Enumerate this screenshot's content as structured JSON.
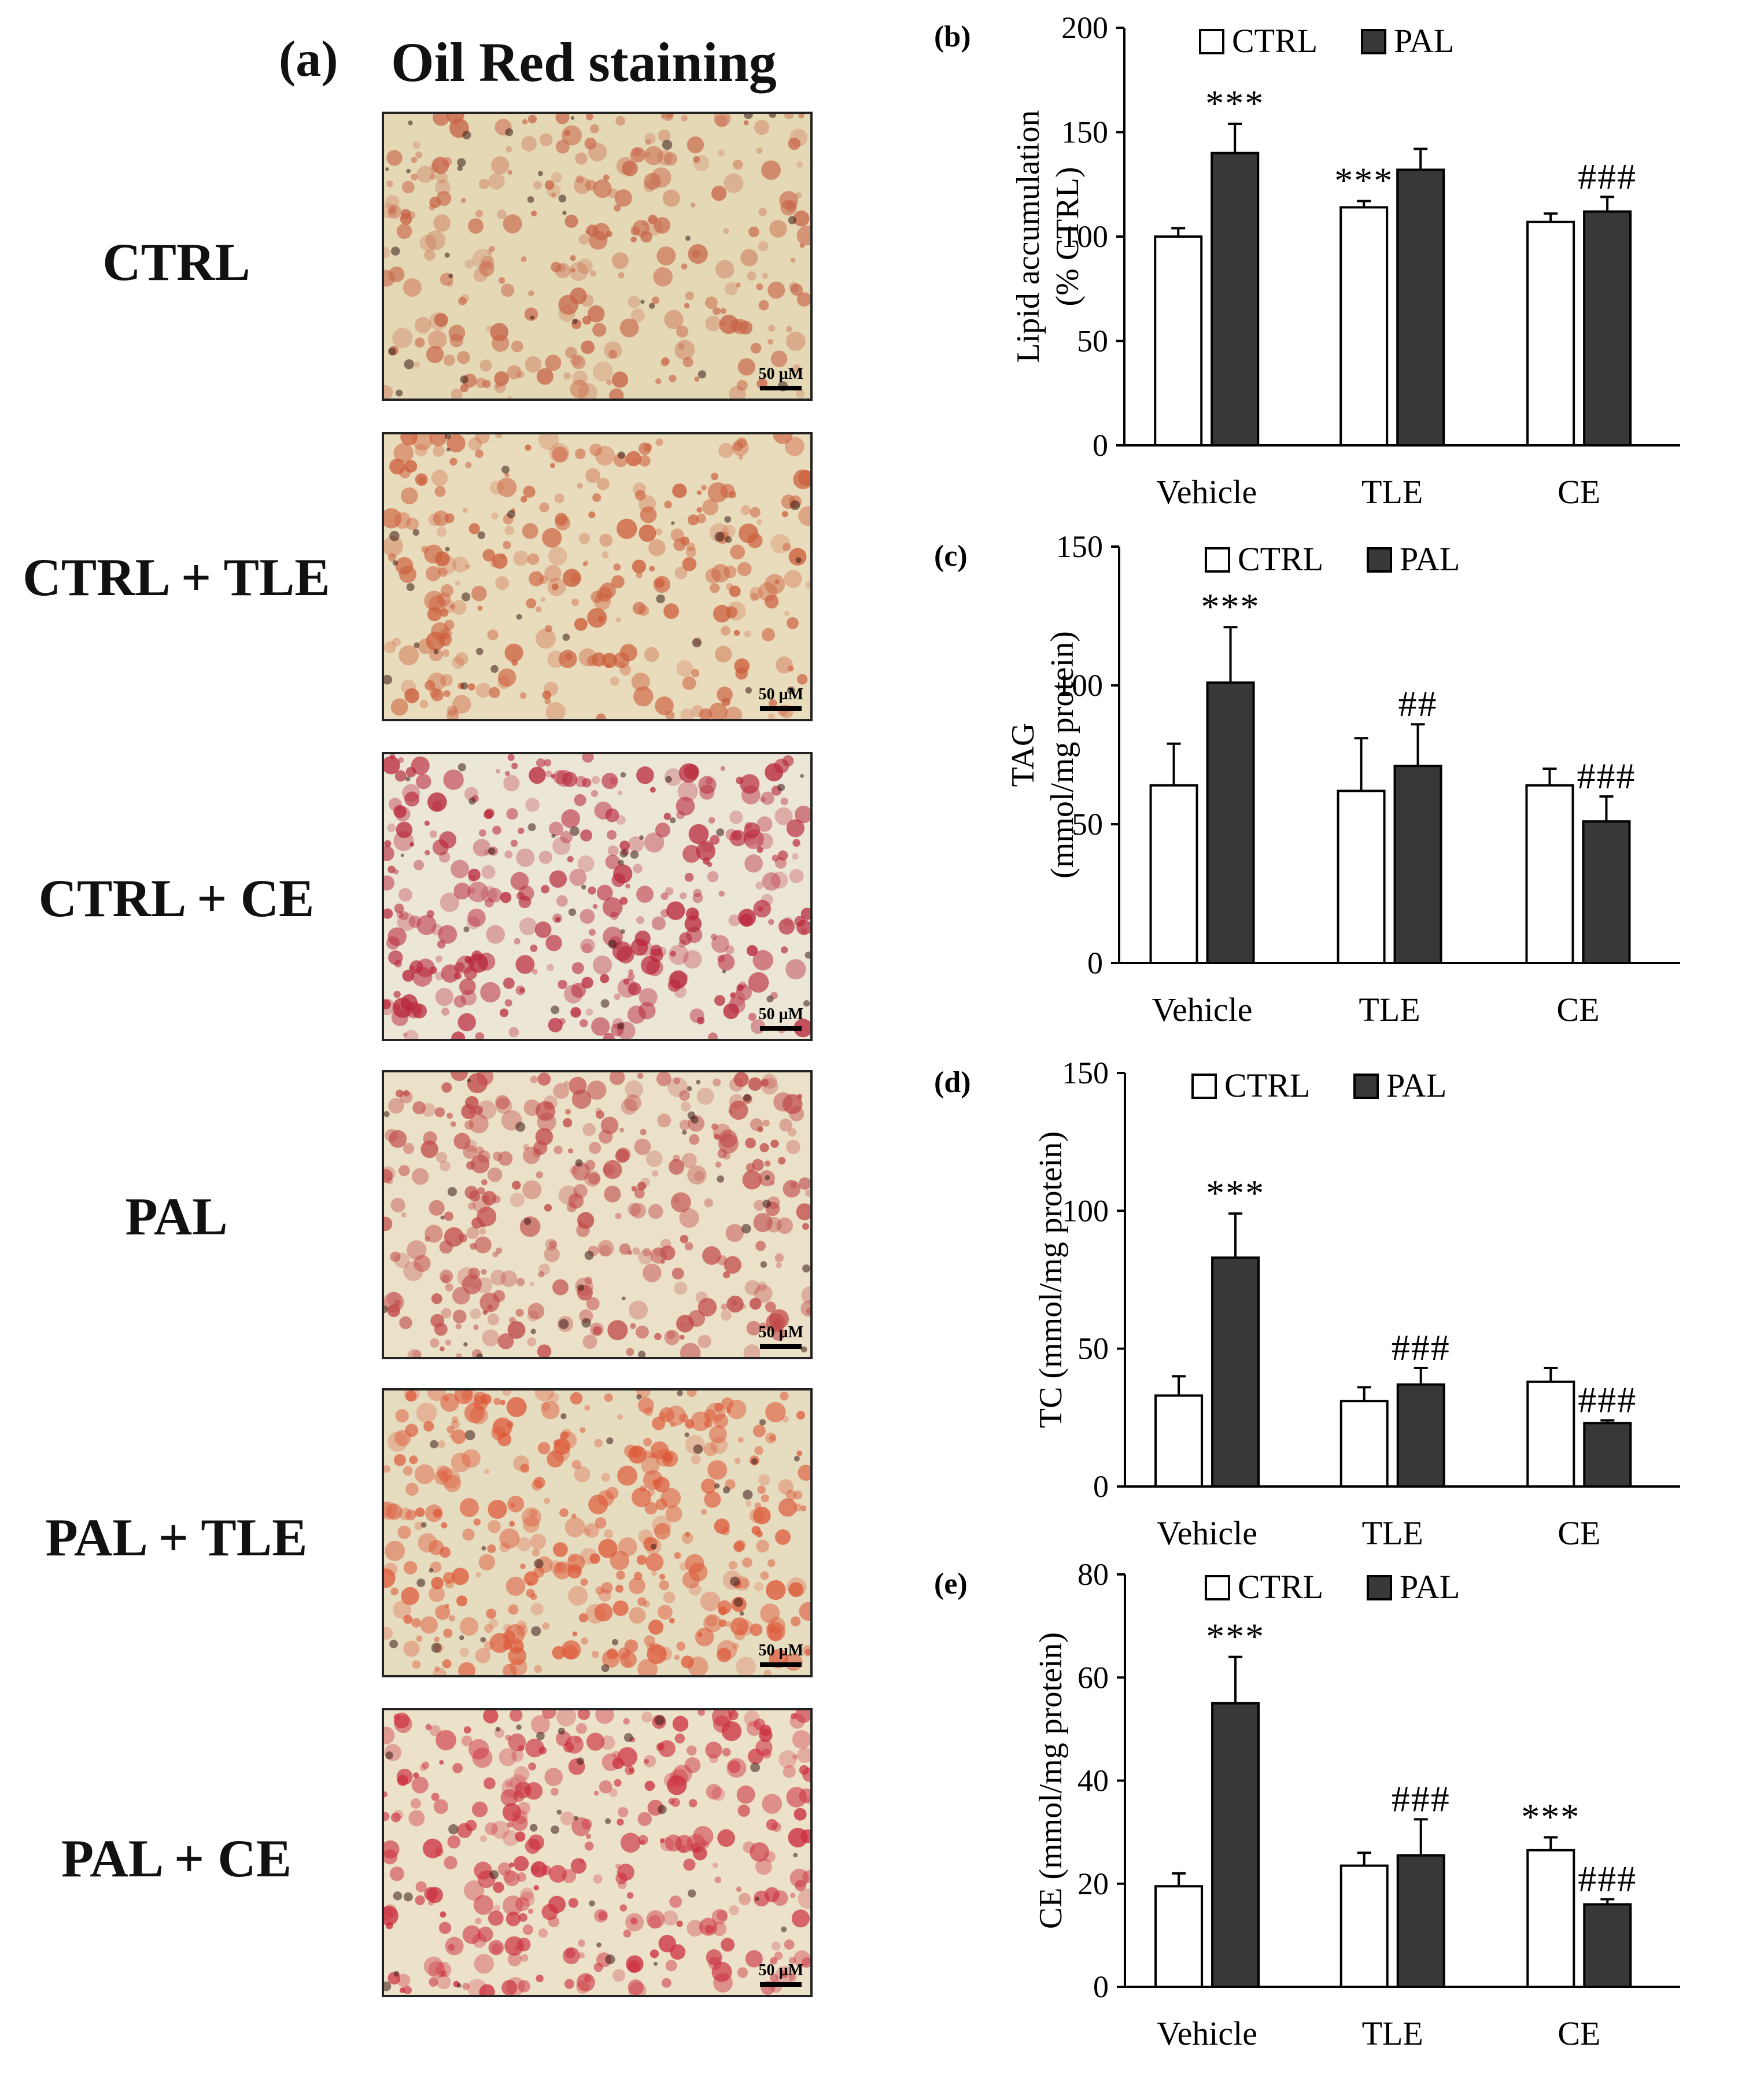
{
  "panel_a": {
    "letter": "(a)",
    "title": "Oil Red staining",
    "scale_label": "50 µM",
    "rows": [
      {
        "label": "CTRL",
        "stain": "#c86448",
        "bg": "#e4d8b5",
        "density": 0.45
      },
      {
        "label": "CTRL + TLE",
        "stain": "#cc5e3c",
        "bg": "#e8dcbc",
        "density": 0.5
      },
      {
        "label": "CTRL + CE",
        "stain": "#b8283c",
        "bg": "#ece6d6",
        "density": 0.75
      },
      {
        "label": "PAL",
        "stain": "#c04848",
        "bg": "#ebe1c8",
        "density": 0.7
      },
      {
        "label": "PAL + TLE",
        "stain": "#dd5a3a",
        "bg": "#e6dcc0",
        "density": 0.85
      },
      {
        "label": "PAL + CE",
        "stain": "#cc3040",
        "bg": "#ece2ca",
        "density": 0.7
      }
    ]
  },
  "legend": {
    "ctrl": "CTRL",
    "pal": "PAL"
  },
  "colors": {
    "ctrl_fill": "#ffffff",
    "pal_fill": "#383838",
    "stroke": "#000000"
  },
  "chart_data": [
    {
      "id": "b",
      "letter": "(b)",
      "type": "bar",
      "categories": [
        "Vehicle",
        "TLE",
        "CE"
      ],
      "ylabel": "Lipid accumulation",
      "ylabel2": "(% CTRL)",
      "ylim": [
        0,
        200
      ],
      "yticks": [
        0,
        50,
        100,
        150,
        200
      ],
      "series": [
        {
          "name": "CTRL",
          "values": [
            100,
            114,
            107
          ],
          "errors": [
            4,
            3,
            4
          ]
        },
        {
          "name": "PAL",
          "values": [
            140,
            132,
            112
          ],
          "errors": [
            14,
            10,
            7
          ]
        }
      ],
      "annotations": [
        {
          "category": 0,
          "series": 1,
          "text": "***"
        },
        {
          "category": 1,
          "series": 0,
          "text": "***"
        },
        {
          "category": 2,
          "series": 1,
          "text": "###"
        }
      ]
    },
    {
      "id": "c",
      "letter": "(c)",
      "type": "bar",
      "categories": [
        "Vehicle",
        "TLE",
        "CE"
      ],
      "ylabel": "TAG",
      "ylabel2": "(mmol/mg protein)",
      "ylim": [
        0,
        150
      ],
      "yticks": [
        0,
        50,
        100,
        150
      ],
      "series": [
        {
          "name": "CTRL",
          "values": [
            64,
            62,
            64
          ],
          "errors": [
            15,
            19,
            6
          ]
        },
        {
          "name": "PAL",
          "values": [
            101,
            71,
            51
          ],
          "errors": [
            20,
            15,
            9
          ]
        }
      ],
      "annotations": [
        {
          "category": 0,
          "series": 1,
          "text": "***"
        },
        {
          "category": 1,
          "series": 1,
          "text": "##"
        },
        {
          "category": 2,
          "series": 1,
          "text": "###"
        }
      ]
    },
    {
      "id": "d",
      "letter": "(d)",
      "type": "bar",
      "categories": [
        "Vehicle",
        "TLE",
        "CE"
      ],
      "ylabel": "TC (mmol/mg protein)",
      "ylabel2": "",
      "ylim": [
        0,
        150
      ],
      "yticks": [
        0,
        50,
        100,
        150
      ],
      "series": [
        {
          "name": "CTRL",
          "values": [
            33,
            31,
            38
          ],
          "errors": [
            7,
            5,
            5
          ]
        },
        {
          "name": "PAL",
          "values": [
            83,
            37,
            23
          ],
          "errors": [
            16,
            6,
            1
          ]
        }
      ],
      "annotations": [
        {
          "category": 0,
          "series": 1,
          "text": "***"
        },
        {
          "category": 1,
          "series": 1,
          "text": "###"
        },
        {
          "category": 2,
          "series": 1,
          "text": "###"
        }
      ]
    },
    {
      "id": "e",
      "letter": "(e)",
      "type": "bar",
      "categories": [
        "Vehicle",
        "TLE",
        "CE"
      ],
      "ylabel": "CE (mmol/mg protein)",
      "ylabel2": "",
      "ylim": [
        0,
        80
      ],
      "yticks": [
        0,
        20,
        40,
        60,
        80
      ],
      "series": [
        {
          "name": "CTRL",
          "values": [
            19.5,
            23.5,
            26.5
          ],
          "errors": [
            2.5,
            2.5,
            2.5
          ]
        },
        {
          "name": "PAL",
          "values": [
            55,
            25.5,
            16
          ],
          "errors": [
            9,
            7,
            1
          ]
        }
      ],
      "annotations": [
        {
          "category": 0,
          "series": 1,
          "text": "***"
        },
        {
          "category": 1,
          "series": 1,
          "text": "###"
        },
        {
          "category": 2,
          "series": 0,
          "text": "***"
        },
        {
          "category": 2,
          "series": 1,
          "text": "###"
        }
      ]
    }
  ]
}
